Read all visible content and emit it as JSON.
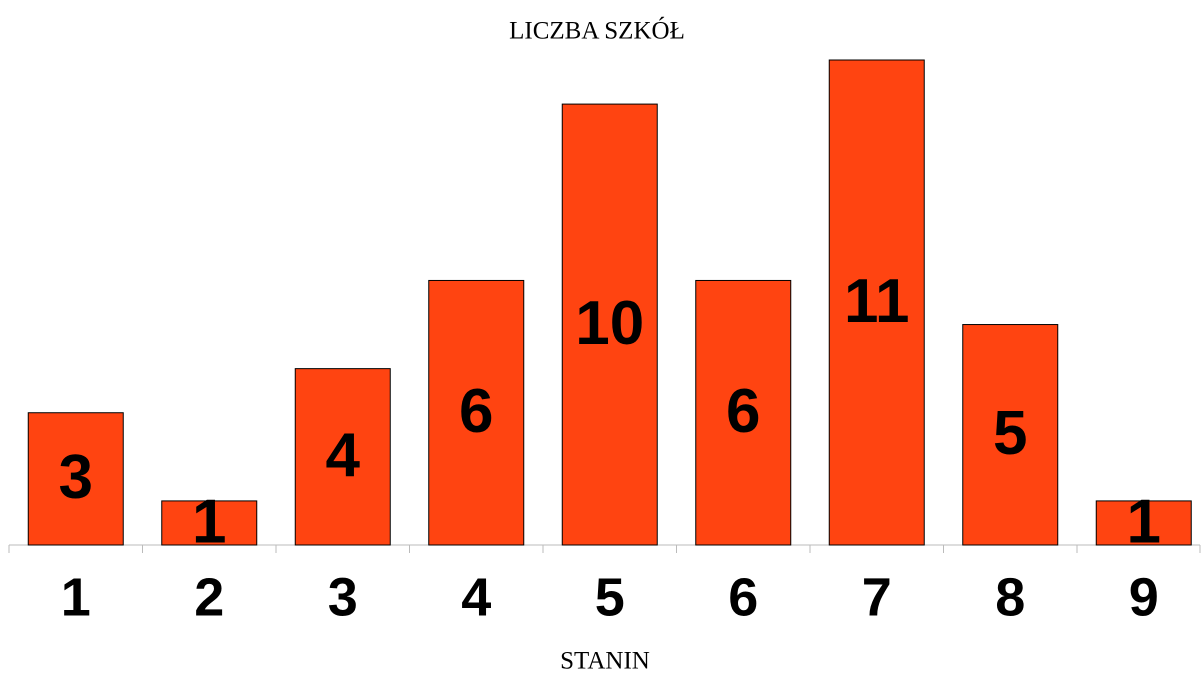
{
  "chart_data": {
    "type": "bar",
    "title": "LICZBA SZKÓŁ",
    "x_label": "STANIN",
    "categories": [
      "1",
      "2",
      "3",
      "4",
      "5",
      "6",
      "7",
      "8",
      "9"
    ],
    "values": [
      3,
      1,
      4,
      6,
      10,
      6,
      11,
      5,
      1
    ],
    "color": "#ff4411",
    "ylim": [
      0,
      11
    ]
  }
}
